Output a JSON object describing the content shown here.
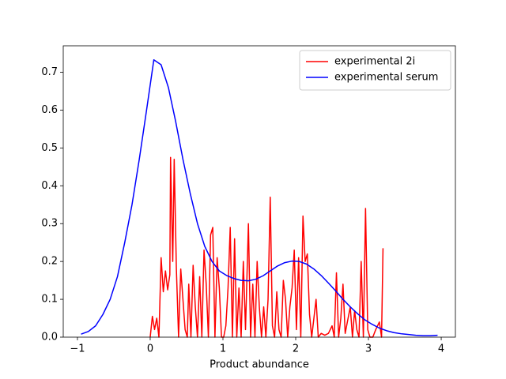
{
  "chart_data": {
    "type": "line",
    "xlabel": "Product abundance",
    "xlim": [
      -1.195,
      4.195
    ],
    "ylim": [
      0,
      0.77
    ],
    "xticks": [
      {
        "value": -1,
        "label": "−1"
      },
      0,
      1,
      2,
      3,
      4
    ],
    "yticks": [
      {
        "value": 0,
        "label": "0.0"
      },
      0.1,
      0.2,
      0.3,
      0.4,
      0.5,
      0.6,
      0.7
    ],
    "legend": "upper right",
    "series": [
      {
        "name": "experimental 2i",
        "color": "#ff0000",
        "x": [
          0.0,
          0.03,
          0.06,
          0.09,
          0.12,
          0.15,
          0.18,
          0.21,
          0.24,
          0.27,
          0.28,
          0.31,
          0.33,
          0.36,
          0.39,
          0.42,
          0.45,
          0.48,
          0.51,
          0.53,
          0.56,
          0.59,
          0.62,
          0.65,
          0.68,
          0.71,
          0.74,
          0.77,
          0.8,
          0.83,
          0.86,
          0.89,
          0.92,
          0.95,
          0.98,
          1.01,
          1.04,
          1.07,
          1.1,
          1.13,
          1.16,
          1.19,
          1.22,
          1.25,
          1.28,
          1.31,
          1.35,
          1.38,
          1.41,
          1.44,
          1.47,
          1.5,
          1.53,
          1.56,
          1.59,
          1.62,
          1.65,
          1.68,
          1.71,
          1.74,
          1.77,
          1.8,
          1.83,
          1.86,
          1.89,
          1.92,
          1.95,
          1.98,
          2.01,
          2.04,
          2.07,
          2.1,
          2.13,
          2.16,
          2.19,
          2.22,
          2.25,
          2.28,
          2.31,
          2.35,
          2.4,
          2.45,
          2.5,
          2.53,
          2.56,
          2.59,
          2.62,
          2.65,
          2.68,
          2.72,
          2.75,
          2.78,
          2.81,
          2.84,
          2.87,
          2.9,
          2.93,
          2.96,
          2.99,
          3.02,
          3.06,
          3.1,
          3.15,
          3.18,
          3.2
        ],
        "values": [
          0,
          0.055,
          0.02,
          0.05,
          0,
          0.21,
          0.12,
          0.175,
          0.125,
          0.165,
          0.475,
          0.2,
          0.47,
          0.18,
          0,
          0.18,
          0.1,
          0.02,
          0,
          0.14,
          0,
          0.19,
          0.08,
          0,
          0.16,
          0,
          0.23,
          0.14,
          0,
          0.27,
          0.29,
          0,
          0.21,
          0.13,
          0,
          0,
          0.03,
          0.13,
          0.29,
          0,
          0.26,
          0,
          0.13,
          0,
          0.2,
          0.02,
          0.3,
          0,
          0.14,
          0,
          0.2,
          0.08,
          0,
          0.08,
          0,
          0.1,
          0.37,
          0.03,
          0,
          0.12,
          0.02,
          0,
          0.15,
          0.1,
          0,
          0.08,
          0.13,
          0.23,
          0.02,
          0.21,
          0,
          0.32,
          0.2,
          0.22,
          0.06,
          0,
          0.05,
          0.1,
          0,
          0.01,
          0.005,
          0.01,
          0.03,
          0,
          0.17,
          0,
          0.05,
          0.14,
          0.01,
          0.05,
          0.08,
          0,
          0.07,
          0.02,
          0,
          0.2,
          0,
          0.34,
          0.02,
          0,
          0,
          0.02,
          0.04,
          0,
          0.235
        ]
      },
      {
        "name": "experimental serum",
        "color": "#0000ff",
        "x": [
          -0.95,
          -0.85,
          -0.75,
          -0.65,
          -0.55,
          -0.45,
          -0.35,
          -0.25,
          -0.15,
          -0.05,
          0.05,
          0.15,
          0.25,
          0.35,
          0.45,
          0.55,
          0.65,
          0.75,
          0.85,
          0.95,
          1.05,
          1.15,
          1.25,
          1.35,
          1.45,
          1.55,
          1.65,
          1.75,
          1.85,
          1.95,
          2.05,
          2.15,
          2.25,
          2.35,
          2.45,
          2.55,
          2.65,
          2.75,
          2.85,
          2.95,
          3.05,
          3.15,
          3.25,
          3.35,
          3.45,
          3.55,
          3.65,
          3.75,
          3.85,
          3.95
        ],
        "values": [
          0.008,
          0.015,
          0.03,
          0.06,
          0.1,
          0.16,
          0.25,
          0.35,
          0.47,
          0.6,
          0.733,
          0.72,
          0.66,
          0.57,
          0.47,
          0.38,
          0.3,
          0.24,
          0.2,
          0.175,
          0.163,
          0.155,
          0.15,
          0.149,
          0.153,
          0.162,
          0.175,
          0.188,
          0.197,
          0.201,
          0.2,
          0.193,
          0.18,
          0.163,
          0.143,
          0.122,
          0.1,
          0.08,
          0.062,
          0.046,
          0.034,
          0.024,
          0.017,
          0.012,
          0.009,
          0.007,
          0.005,
          0.004,
          0.004,
          0.005
        ]
      }
    ]
  }
}
